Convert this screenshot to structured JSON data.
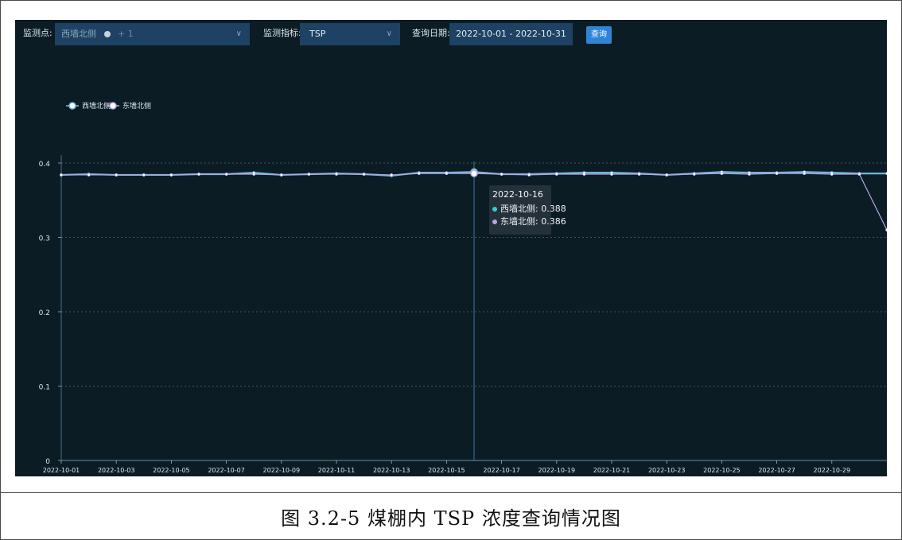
{
  "toolbar": {
    "point_label": "监测点:",
    "point_value": "西墙北侧",
    "point_more": "+ 1",
    "metric_label": "监测指标:",
    "metric_value": "TSP",
    "date_label": "查询日期:",
    "date_value": "2022-10-01 - 2022-10-31",
    "query_button": "查询"
  },
  "tooltip": {
    "date": "2022-10-16",
    "rows": [
      {
        "text": "西墙北侧: 0.388",
        "color": "#3ec9cf"
      },
      {
        "text": "东墙北侧: 0.386",
        "color": "#b7a6e0"
      }
    ]
  },
  "caption": "图 3.2-5 煤棚内 TSP 浓度查询情况图",
  "colors": {
    "background": "#0b1c24",
    "series_west": "#6fb7dc",
    "series_east": "#b7a6e0",
    "grid": "#7a8a92",
    "button": "#2f84d6",
    "select": "#1d4263"
  },
  "chart_data": {
    "type": "line",
    "x": [
      "2022-10-01",
      "2022-10-02",
      "2022-10-03",
      "2022-10-04",
      "2022-10-05",
      "2022-10-06",
      "2022-10-07",
      "2022-10-08",
      "2022-10-09",
      "2022-10-10",
      "2022-10-11",
      "2022-10-12",
      "2022-10-13",
      "2022-10-14",
      "2022-10-15",
      "2022-10-16",
      "2022-10-17",
      "2022-10-18",
      "2022-10-19",
      "2022-10-20",
      "2022-10-21",
      "2022-10-22",
      "2022-10-23",
      "2022-10-24",
      "2022-10-25",
      "2022-10-26",
      "2022-10-27",
      "2022-10-28",
      "2022-10-29",
      "2022-10-30",
      "2022-10-31"
    ],
    "x_tick_labels": [
      "2022-10-01",
      "2022-10-03",
      "2022-10-05",
      "2022-10-07",
      "2022-10-09",
      "2022-10-11",
      "2022-10-13",
      "2022-10-15",
      "2022-10-17",
      "2022-10-19",
      "2022-10-21",
      "2022-10-23",
      "2022-10-25",
      "2022-10-27",
      "2022-10-29"
    ],
    "y_ticks": [
      "0",
      "0.1",
      "0.2",
      "0.3",
      "0.4"
    ],
    "ylim": [
      0,
      0.4
    ],
    "grid": true,
    "legend_position": "top-left",
    "series": [
      {
        "name": "西墙北侧",
        "color": "#6fb7dc",
        "values": [
          0.384,
          0.385,
          0.384,
          0.384,
          0.384,
          0.385,
          0.385,
          0.387,
          0.384,
          0.385,
          0.386,
          0.385,
          0.383,
          0.387,
          0.387,
          0.388,
          0.385,
          0.385,
          0.386,
          0.387,
          0.387,
          0.386,
          0.384,
          0.386,
          0.388,
          0.387,
          0.387,
          0.388,
          0.387,
          0.386,
          0.386
        ]
      },
      {
        "name": "东墙北侧",
        "color": "#b7a6e0",
        "values": [
          0.384,
          0.384,
          0.384,
          0.384,
          0.384,
          0.385,
          0.385,
          0.385,
          0.384,
          0.385,
          0.385,
          0.385,
          0.384,
          0.386,
          0.386,
          0.386,
          0.385,
          0.384,
          0.385,
          0.385,
          0.385,
          0.385,
          0.384,
          0.385,
          0.386,
          0.385,
          0.386,
          0.386,
          0.385,
          0.385,
          0.31
        ]
      }
    ],
    "highlighted_x": "2022-10-16"
  }
}
